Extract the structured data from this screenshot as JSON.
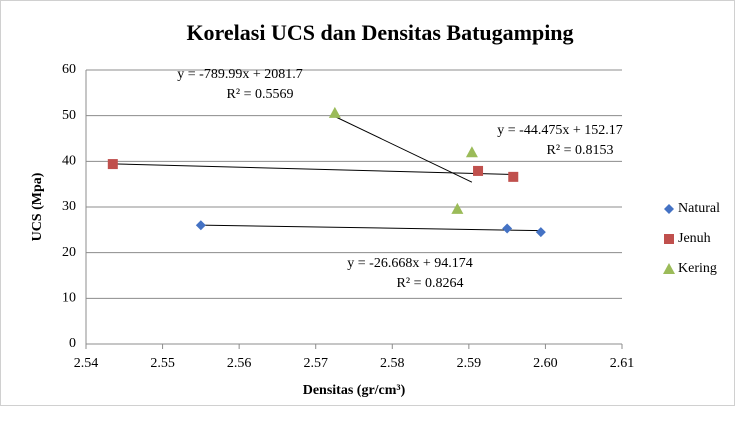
{
  "chart_data": {
    "type": "scatter",
    "title": "Korelasi UCS dan Densitas Batugamping",
    "x_label": "Densitas (gr/cm³)",
    "y_label": "UCS (Mpa)",
    "xlim": [
      2.54,
      2.61
    ],
    "xticks": [
      2.54,
      2.55,
      2.56,
      2.57,
      2.58,
      2.59,
      {
        "value": 2.6,
        "label": "2.60"
      },
      2.61
    ],
    "ylim": [
      0,
      60
    ],
    "yticks": [
      0,
      10,
      20,
      30,
      40,
      50,
      60
    ],
    "grid": true,
    "legend": "right",
    "trendline": true,
    "series": [
      {
        "name": "Natural",
        "color": "#4472c4",
        "marker": "diamond",
        "x": [
          2.555,
          2.595,
          2.5994
        ],
        "values": [
          26.0,
          25.3,
          24.5
        ]
      },
      {
        "name": "Jenuh",
        "color": "#c0504d",
        "marker": "square",
        "x": [
          2.5435,
          2.5912,
          2.5958
        ],
        "values": [
          39.4,
          37.9,
          36.6
        ]
      },
      {
        "name": "Kering",
        "color": "#9bbb59",
        "marker": "triangle",
        "x": [
          2.5725,
          2.5904,
          2.5885
        ],
        "values": [
          50.6,
          42.0,
          29.6
        ]
      }
    ],
    "annotations": [
      [
        "y = -26.668x + 94.174",
        "R² = 0.8264"
      ],
      [
        "y = -44.475x + 152.17",
        "R² = 0.8153"
      ],
      [
        "y = -789.99x + 2081.7",
        "R² = 0.5569"
      ]
    ]
  }
}
